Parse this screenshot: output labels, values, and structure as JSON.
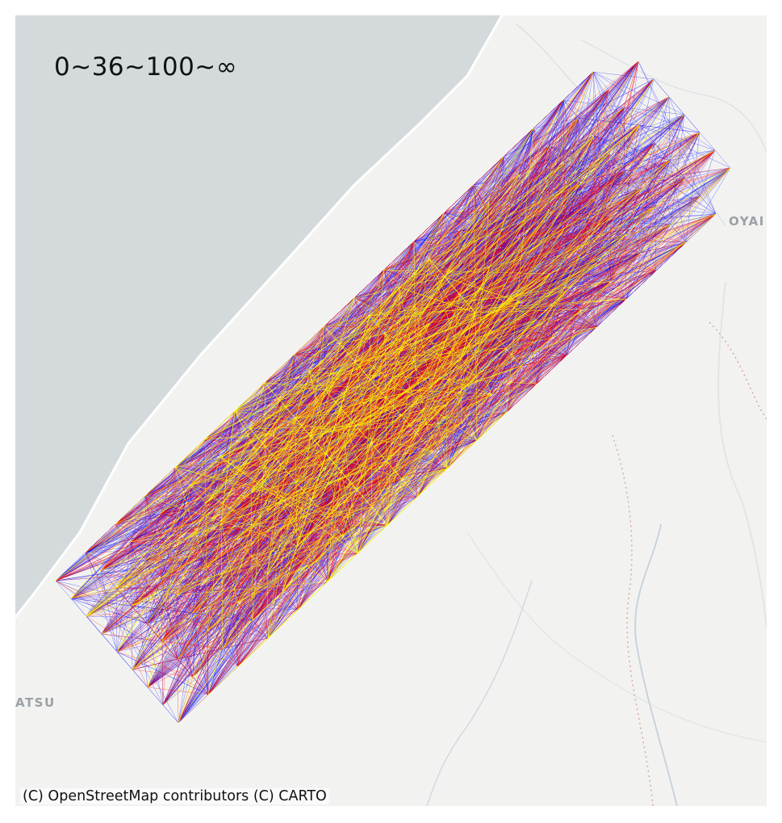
{
  "map": {
    "legend_title": "0~36~100~∞",
    "attribution": "(C) OpenStreetMap contributors (C) CARTO",
    "place_labels": [
      {
        "name": "place-label-oyabe",
        "text": "OYAI"
      },
      {
        "name": "place-label-komatsu",
        "text": "ATSU"
      }
    ],
    "colors": {
      "sea": "#d4dadc",
      "land": "#f2f3f1",
      "land_road": "#ffffff",
      "river": "#c9d3da",
      "border": "#d9a8a0",
      "class_low": "#0000ff",
      "class_mid": "#ff0000",
      "class_high": "#ffff00"
    },
    "classes": [
      "0~36",
      "36~100",
      "100~∞"
    ],
    "basemap": "CARTO light (OpenStreetMap)"
  }
}
